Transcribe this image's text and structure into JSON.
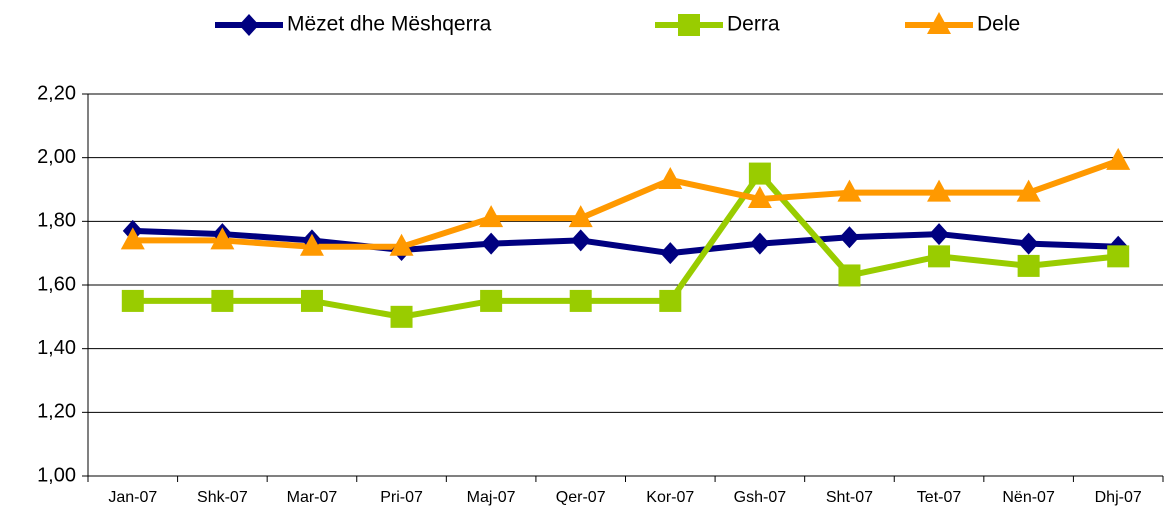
{
  "chart_data": {
    "type": "line",
    "categories": [
      "Jan-07",
      "Shk-07",
      "Mar-07",
      "Pri-07",
      "Maj-07",
      "Qer-07",
      "Kor-07",
      "Gsh-07",
      "Sht-07",
      "Tet-07",
      "Nën-07",
      "Dhj-07"
    ],
    "series": [
      {
        "name": "Mëzet dhe Mëshqerra",
        "color": "#000080",
        "marker": "diamond",
        "values": [
          1.77,
          1.76,
          1.74,
          1.71,
          1.73,
          1.74,
          1.7,
          1.73,
          1.75,
          1.76,
          1.73,
          1.72
        ]
      },
      {
        "name": "Derra",
        "color": "#99cc00",
        "marker": "square",
        "values": [
          1.55,
          1.55,
          1.55,
          1.5,
          1.55,
          1.55,
          1.55,
          1.95,
          1.63,
          1.69,
          1.66,
          1.69
        ]
      },
      {
        "name": "Dele",
        "color": "#ff9900",
        "marker": "triangle",
        "values": [
          1.74,
          1.74,
          1.72,
          1.72,
          1.81,
          1.81,
          1.93,
          1.87,
          1.89,
          1.89,
          1.89,
          1.99
        ]
      }
    ],
    "ylim": [
      1.0,
      2.2
    ],
    "yticks": [
      {
        "value": 1.0,
        "label": "1,00"
      },
      {
        "value": 1.2,
        "label": "1,20"
      },
      {
        "value": 1.4,
        "label": "1,40"
      },
      {
        "value": 1.6,
        "label": "1,60"
      },
      {
        "value": 1.8,
        "label": "1,80"
      },
      {
        "value": 2.0,
        "label": "2,00"
      },
      {
        "value": 2.2,
        "label": "2,20"
      }
    ],
    "grid": true,
    "legend": "top"
  }
}
